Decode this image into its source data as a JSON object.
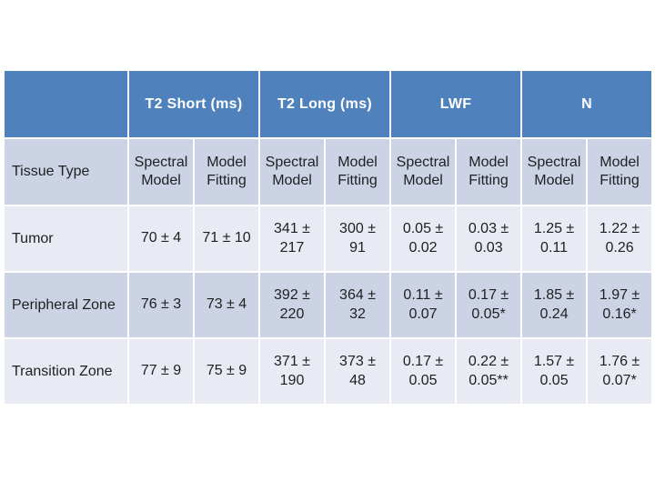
{
  "table": {
    "colors": {
      "header_bg": "#4f81bd",
      "header_text": "#ffffff",
      "band_dark": "#ccd3e5",
      "band_light": "#e9ebf4",
      "border_color": "#ffffff",
      "body_text": "#1f1f1f"
    },
    "corner_label": "",
    "groups": [
      {
        "label": "T2 Short (ms)"
      },
      {
        "label": "T2 Long (ms)"
      },
      {
        "label": "LWF"
      },
      {
        "label": "N"
      }
    ],
    "subheader": {
      "tissue_type": "Tissue Type",
      "columns": [
        "Spectral\nModel",
        "Model\nFitting",
        "Spectral\nModel",
        "Model\nFitting",
        "Spectral\nModel",
        "Model\nFitting",
        "Spectral\nModel",
        "Model\nFitting"
      ]
    },
    "rows": [
      {
        "label": "Tumor",
        "values": [
          "70 ± 4",
          "71 ± 10",
          "341 ±\n217",
          "300 ±\n91",
          "0.05 ±\n0.02",
          "0.03 ±\n0.03",
          "1.25 ±\n0.11",
          "1.22 ±\n0.26"
        ]
      },
      {
        "label": "Peripheral Zone",
        "values": [
          "76 ± 3",
          "73 ± 4",
          "392 ±\n220",
          "364 ±\n32",
          "0.11 ±\n0.07",
          "0.17 ±\n0.05*",
          "1.85 ±\n0.24",
          "1.97 ±\n0.16*"
        ]
      },
      {
        "label": "Transition Zone",
        "values": [
          "77 ± 9",
          "75 ± 9",
          "371 ±\n190",
          "373 ±\n48",
          "0.17 ±\n0.05",
          "0.22 ±\n0.05**",
          "1.57 ±\n0.05",
          "1.76 ±\n0.07*"
        ]
      }
    ]
  }
}
